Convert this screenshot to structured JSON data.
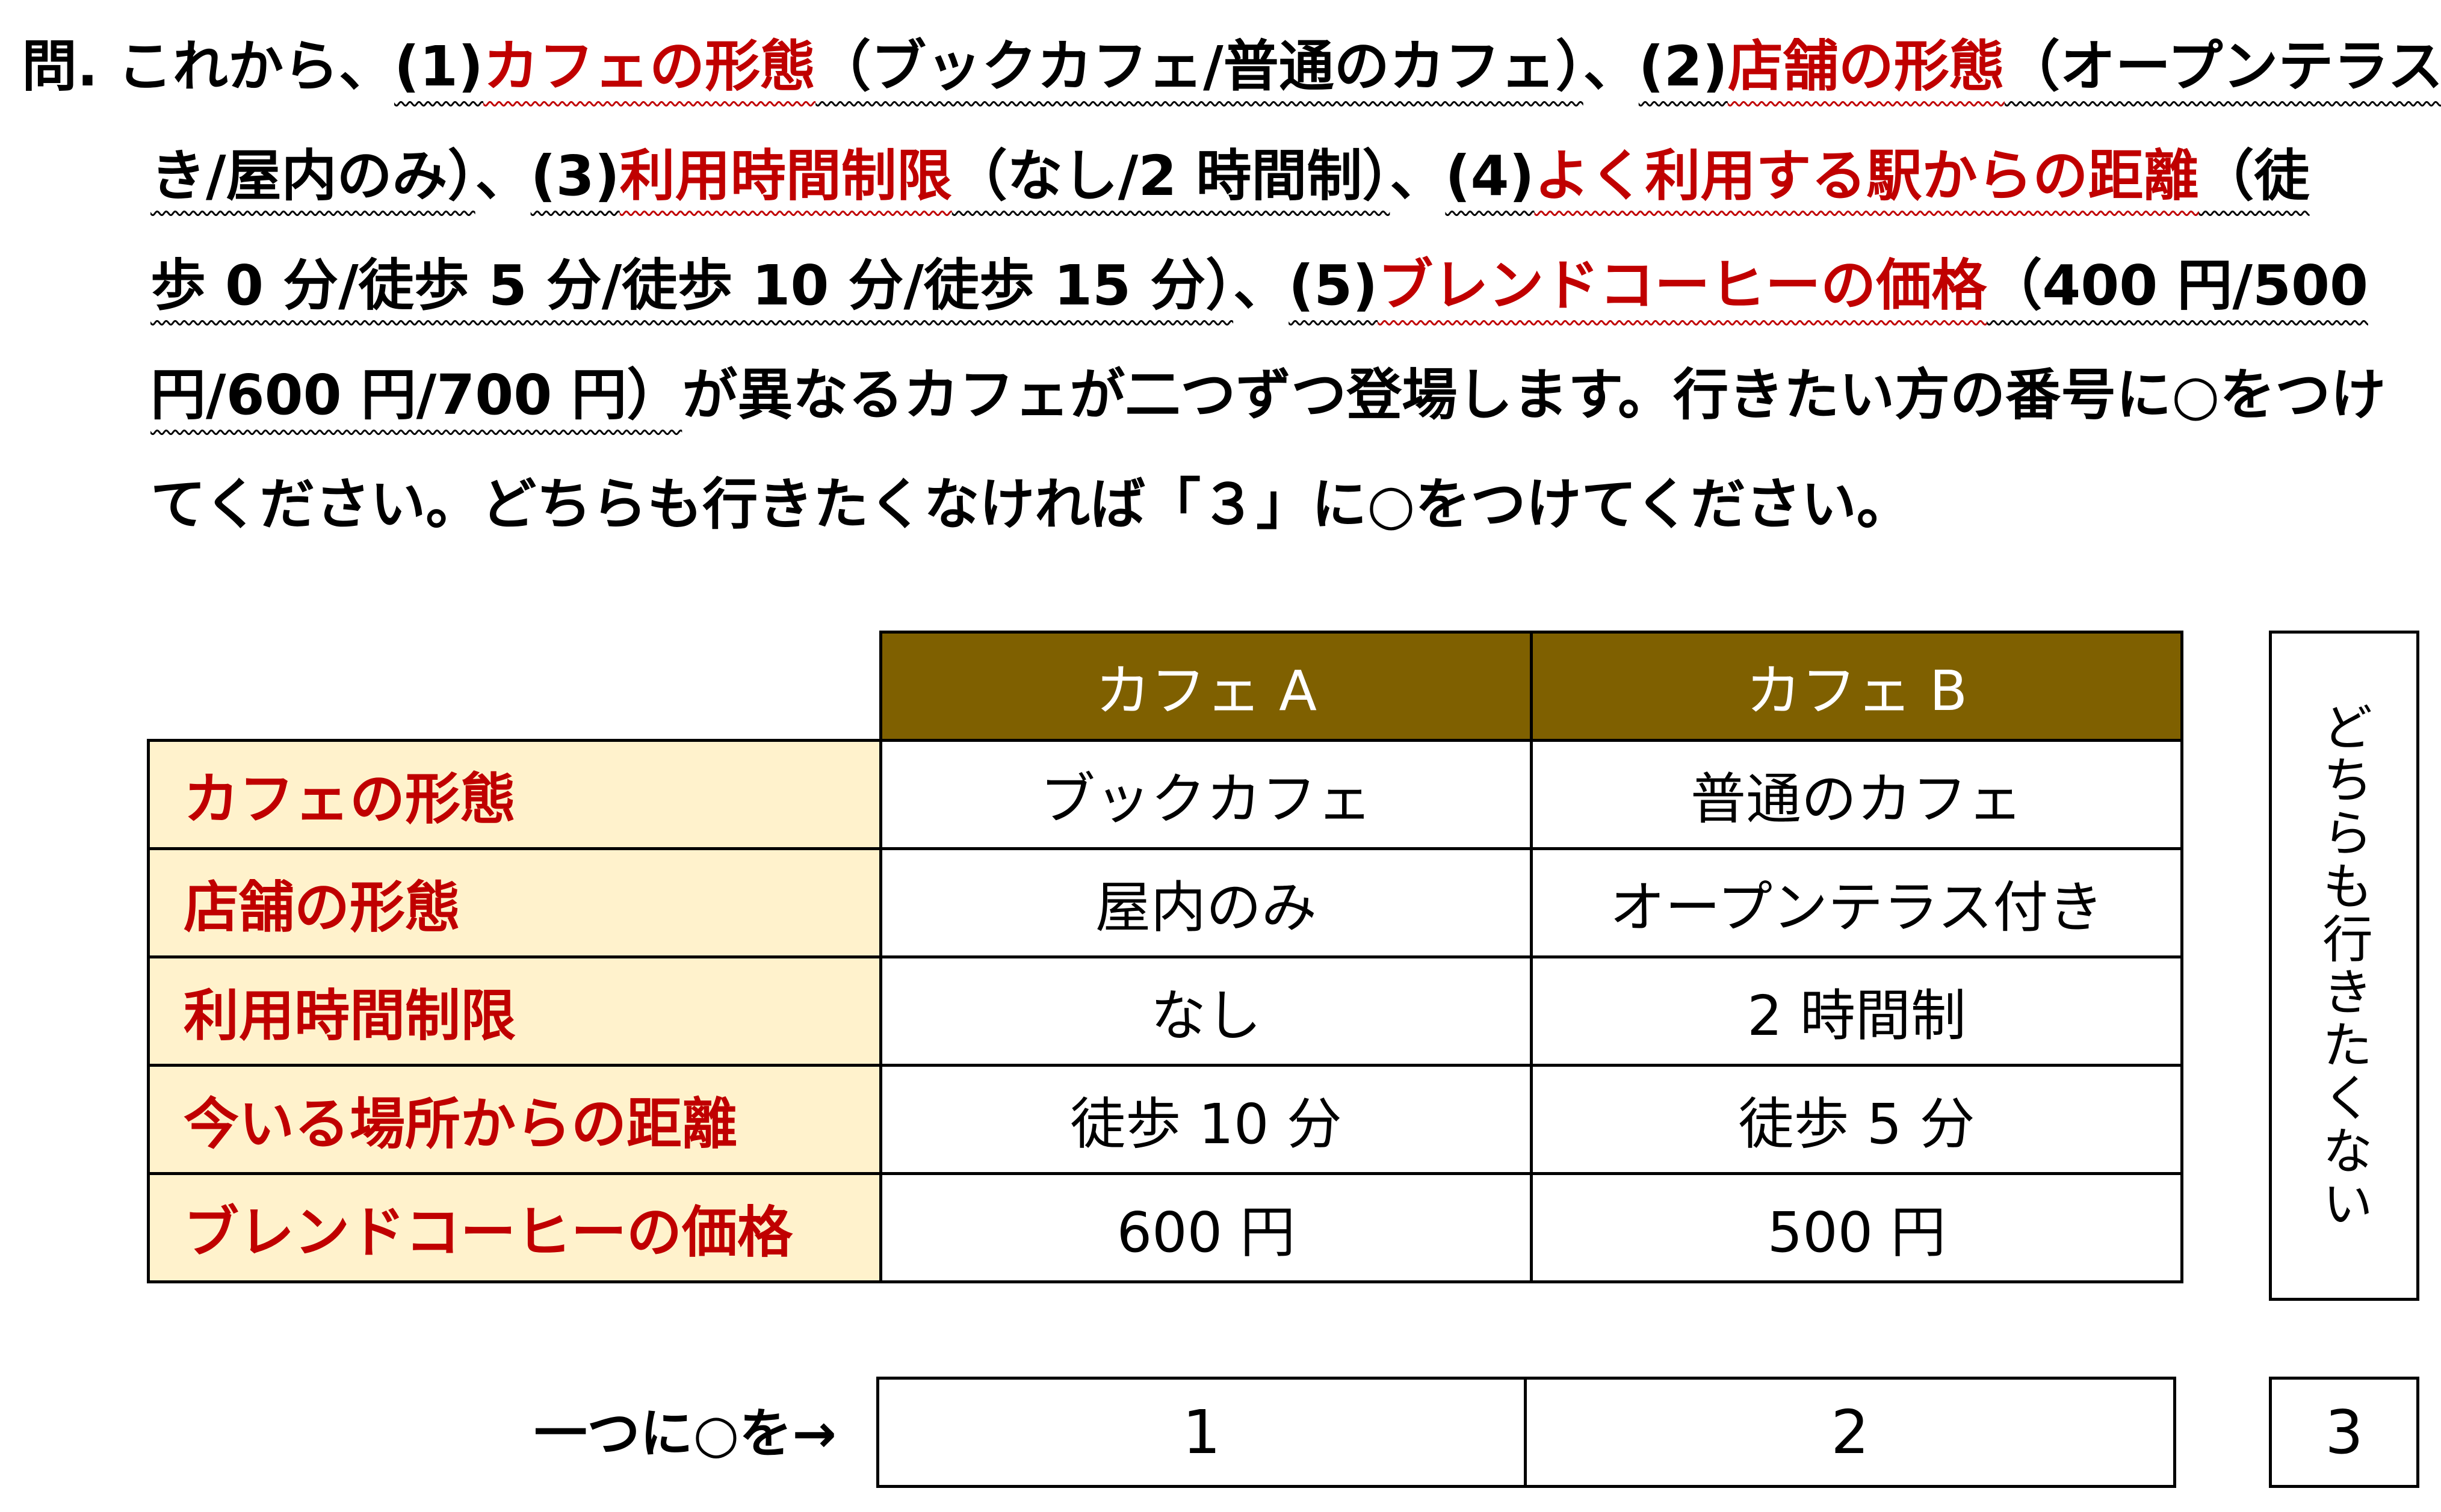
{
  "question": {
    "lines": [
      [
        {
          "t": "問. これから、"
        },
        {
          "t": "(1)",
          "u": true
        },
        {
          "t": "カフェの形態",
          "u": true,
          "red": true
        },
        {
          "t": "（ブックカフェ/普通のカフェ）",
          "u": true
        },
        {
          "t": "、"
        },
        {
          "t": "(2)",
          "u": true
        },
        {
          "t": "店舗の形態",
          "u": true,
          "red": true
        },
        {
          "t": "（オープンテラス付",
          "u": true
        }
      ],
      [
        {
          "t": "き/屋内のみ）",
          "u": true
        },
        {
          "t": "、"
        },
        {
          "t": "(3)",
          "u": true
        },
        {
          "t": "利用時間制限",
          "u": true,
          "red": true
        },
        {
          "t": "（なし/2 時間制）",
          "u": true
        },
        {
          "t": "、"
        },
        {
          "t": "(4)",
          "u": true
        },
        {
          "t": "よく利用する駅からの距離",
          "u": true,
          "red": true
        },
        {
          "t": "（徒",
          "u": true
        }
      ],
      [
        {
          "t": "歩 0 分/徒歩 5 分/徒歩 10 分/徒歩 15 分）",
          "u": true
        },
        {
          "t": "、"
        },
        {
          "t": "(5)",
          "u": true
        },
        {
          "t": "ブレンドコーヒーの価格",
          "u": true,
          "red": true
        },
        {
          "t": "（400 円/500",
          "u": true
        }
      ],
      [
        {
          "t": "円/600 円/700 円）",
          "u": true
        },
        {
          "t": "が異なるカフェが二つずつ登場します。行きたい方の番号に○をつけ"
        }
      ],
      [
        {
          "t": "てください。どちらも行きたくなければ「３」に○をつけてください。"
        }
      ]
    ]
  },
  "table": {
    "headers": [
      "カフェ A",
      "カフェ B"
    ],
    "rows": [
      {
        "label": "カフェの形態",
        "a": "ブックカフェ",
        "b": "普通のカフェ"
      },
      {
        "label": "店舗の形態",
        "a": "屋内のみ",
        "b": "オープンテラス付き"
      },
      {
        "label": "利用時間制限",
        "a": "なし",
        "b": "2 時間制"
      },
      {
        "label": "今いる場所からの距離",
        "a": "徒歩 10 分",
        "b": "徒歩 5 分"
      },
      {
        "label": "ブレンドコーヒーの価格",
        "a": "600 円",
        "b": "500 円"
      }
    ]
  },
  "neither": "どちらも行きたくない",
  "choice": {
    "label": "一つに○を→",
    "options": [
      "1",
      "2",
      "3"
    ]
  },
  "colors": {
    "header_bg": "#7f6000",
    "label_bg": "#fff2cc",
    "accent_red": "#c00000"
  }
}
